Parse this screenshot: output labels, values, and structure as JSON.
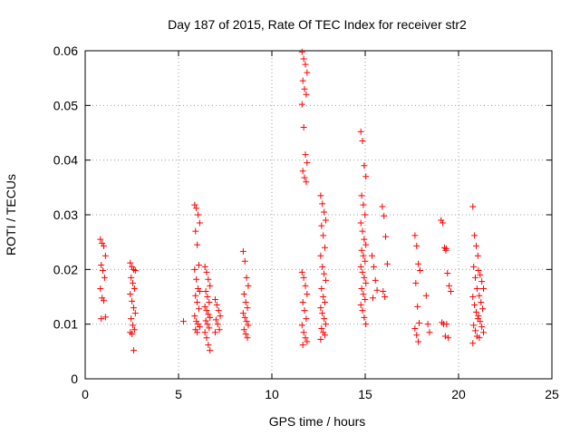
{
  "chart_data": {
    "type": "scatter",
    "title": "Day 187 of 2015, Rate Of TEC Index for receiver str2",
    "xlabel": "GPS time / hours",
    "ylabel": "ROTI / TECUs",
    "xlim": [
      0,
      25
    ],
    "ylim": [
      0,
      0.06
    ],
    "xticks": [
      0,
      5,
      10,
      15,
      20,
      25
    ],
    "xtick_labels": [
      "0",
      "5",
      "10",
      "15",
      "20",
      "25"
    ],
    "yticks": [
      0,
      0.01,
      0.02,
      0.03,
      0.04,
      0.05,
      0.06
    ],
    "ytick_labels": [
      "0",
      "0.01",
      "0.02",
      "0.03",
      "0.04",
      "0.05",
      "0.06"
    ],
    "grid": true,
    "marker": "+",
    "marker_color": "#ff0000",
    "clusters": [
      {
        "x": 0.95,
        "y": [
          0.0255,
          0.0248,
          0.0243,
          0.0225,
          0.0208,
          0.0198,
          0.0185,
          0.0165,
          0.0148,
          0.0143,
          0.0113,
          0.011
        ]
      },
      {
        "x": 2.55,
        "y": [
          0.0212,
          0.0205,
          0.02,
          0.0198,
          0.0185,
          0.0175,
          0.0165,
          0.0155,
          0.0142,
          0.013,
          0.012,
          0.011,
          0.0098,
          0.009,
          0.0085,
          0.0082,
          0.0052
        ]
      },
      {
        "x": 5.4,
        "y": [
          0.0105
        ]
      },
      {
        "x": 6.0,
        "y": [
          0.0318,
          0.0312,
          0.03,
          0.0285,
          0.027,
          0.0245,
          0.0208,
          0.02,
          0.0182,
          0.0165,
          0.016,
          0.0152,
          0.014,
          0.0128,
          0.0115,
          0.0105,
          0.01,
          0.0095,
          0.009,
          0.0085
        ]
      },
      {
        "x": 6.55,
        "y": [
          0.0205,
          0.0195,
          0.0182,
          0.017,
          0.016,
          0.015,
          0.014,
          0.0132,
          0.0125,
          0.0118,
          0.0112,
          0.0106,
          0.01,
          0.0093,
          0.0085,
          0.0075,
          0.0062,
          0.0052
        ]
      },
      {
        "x": 7.1,
        "y": [
          0.0145,
          0.0135,
          0.0125,
          0.0115,
          0.0108,
          0.01,
          0.009,
          0.0085
        ]
      },
      {
        "x": 8.6,
        "y": [
          0.0233,
          0.0215,
          0.0185,
          0.017,
          0.0155,
          0.014,
          0.013,
          0.012,
          0.0112,
          0.0105,
          0.0098,
          0.009,
          0.0082,
          0.0075
        ]
      },
      {
        "x": 11.75,
        "y": [
          0.0598,
          0.0585,
          0.0575,
          0.056,
          0.0545,
          0.053,
          0.052,
          0.0502,
          0.046,
          0.041,
          0.0395,
          0.038,
          0.0368,
          0.036,
          0.0195,
          0.0185,
          0.017,
          0.0155,
          0.014,
          0.0125,
          0.011,
          0.0098,
          0.0085,
          0.0075,
          0.0068,
          0.0062
        ]
      },
      {
        "x": 12.75,
        "y": [
          0.0335,
          0.032,
          0.0305,
          0.029,
          0.028,
          0.0262,
          0.024,
          0.0225,
          0.0205,
          0.0192,
          0.018,
          0.0165,
          0.015,
          0.014,
          0.013,
          0.012,
          0.011,
          0.01,
          0.0092,
          0.0085,
          0.008,
          0.0072
        ]
      },
      {
        "x": 14.9,
        "y": [
          0.0452,
          0.0435,
          0.039,
          0.037,
          0.0335,
          0.0318,
          0.03,
          0.0285,
          0.027,
          0.0255,
          0.0245,
          0.0235,
          0.0225,
          0.0215,
          0.0205,
          0.0195,
          0.0185,
          0.0175,
          0.0165,
          0.0155,
          0.0145,
          0.0135,
          0.0125,
          0.0112,
          0.01
        ]
      },
      {
        "x": 15.5,
        "y": [
          0.0225,
          0.0205,
          0.018,
          0.0162,
          0.0148
        ]
      },
      {
        "x": 16.05,
        "y": [
          0.0315,
          0.0298,
          0.026,
          0.021,
          0.016,
          0.015
        ]
      },
      {
        "x": 17.8,
        "y": [
          0.0262,
          0.0243,
          0.021,
          0.0198,
          0.0175,
          0.0132,
          0.0102,
          0.0092,
          0.008,
          0.0068
        ]
      },
      {
        "x": 18.4,
        "y": [
          0.0152,
          0.01,
          0.0085
        ]
      },
      {
        "x": 19.2,
        "y": [
          0.029,
          0.0285,
          0.024,
          0.0238,
          0.0103,
          0.01,
          0.0078
        ]
      },
      {
        "x": 19.45,
        "y": [
          0.0235,
          0.0193,
          0.017,
          0.016,
          0.01,
          0.0075
        ]
      },
      {
        "x": 20.9,
        "y": [
          0.0315,
          0.0262,
          0.0243,
          0.0225,
          0.0205,
          0.0185,
          0.0165,
          0.015,
          0.0135,
          0.0122,
          0.011,
          0.0098,
          0.0088,
          0.0078,
          0.0065
        ]
      },
      {
        "x": 21.2,
        "y": [
          0.0198,
          0.019,
          0.0178,
          0.0165,
          0.0152,
          0.014,
          0.0128,
          0.0115,
          0.0105,
          0.0095,
          0.0085,
          0.0075
        ]
      }
    ]
  }
}
